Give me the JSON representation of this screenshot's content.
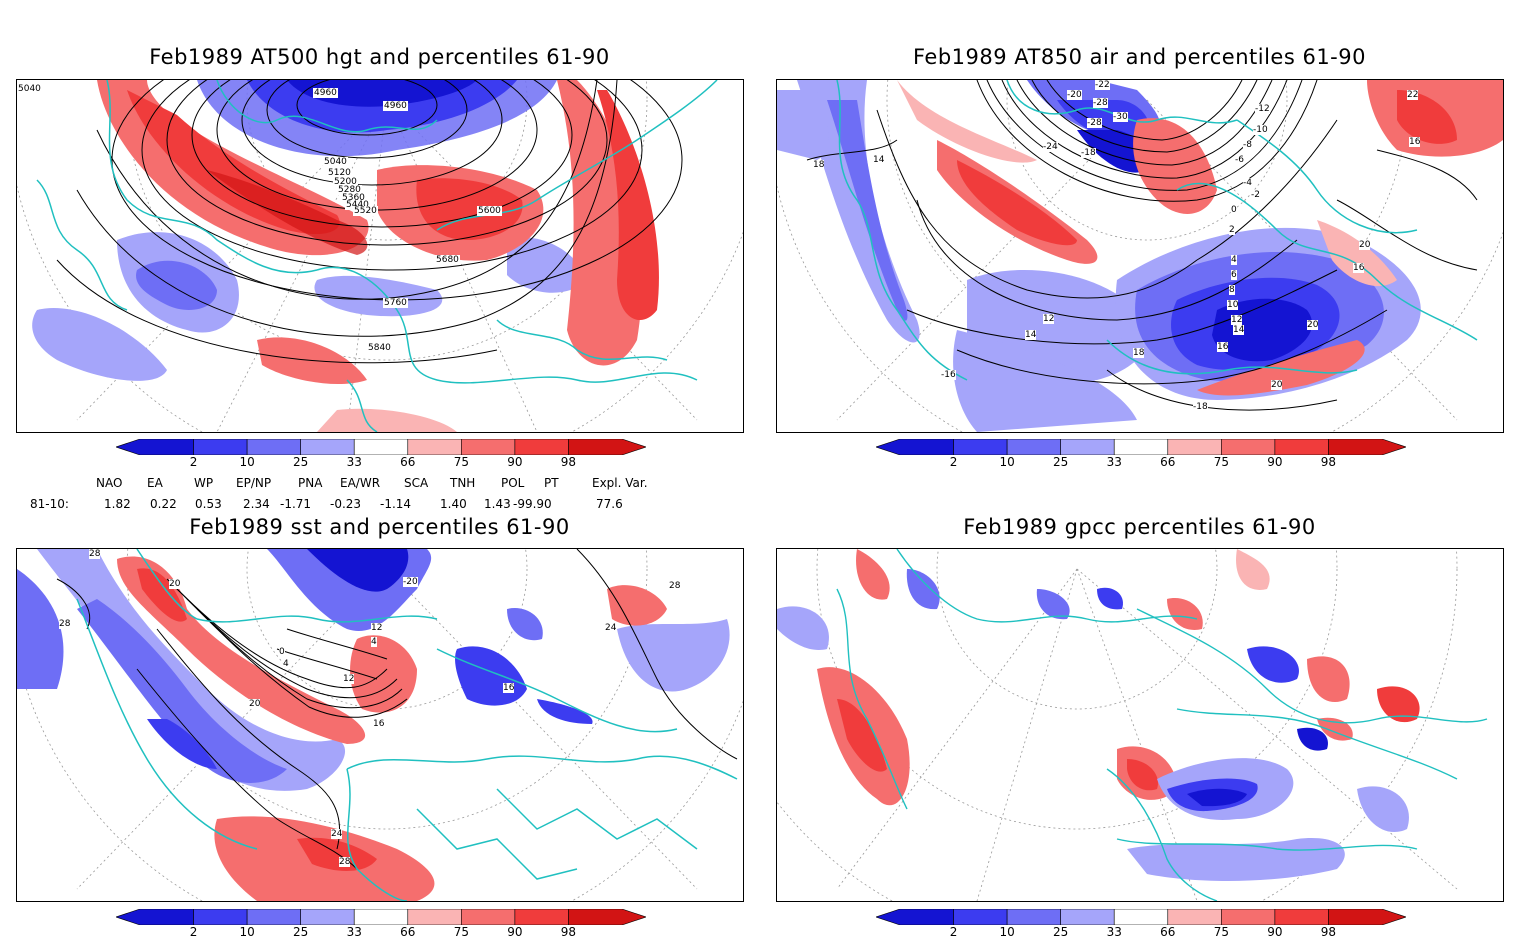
{
  "panels": [
    {
      "id": "tl",
      "title": "Feb1989 AT500 hgt and percentiles 61-90"
    },
    {
      "id": "tr",
      "title": "Feb1989 AT850 air and percentiles 61-90"
    },
    {
      "id": "bl",
      "title": "Feb1989 sst and percentiles 61-90"
    },
    {
      "id": "br",
      "title": "Feb1989 gpcc percentiles 61-90"
    }
  ],
  "colorbar": {
    "labels": [
      "2",
      "10",
      "25",
      "33",
      "66",
      "75",
      "90",
      "98"
    ],
    "colors": [
      "#1414d2",
      "#3c3cf0",
      "#6e6ef5",
      "#a5a5fa",
      "#ffffff",
      "#fab4b4",
      "#f56e6e",
      "#f03c3c",
      "#d21414"
    ]
  },
  "indices": {
    "headers": [
      "NAO",
      "EA",
      "WP",
      "EP/NP",
      "PNA",
      "EA/WR",
      "SCA",
      "TNH",
      "POL",
      "PT",
      "Expl. Var."
    ],
    "row_label": "81-10:",
    "values": [
      "1.82",
      "0.22",
      "0.53",
      "2.34",
      "-1.71",
      "-0.23",
      "-1.14",
      "1.40",
      "1.43",
      "-99.90",
      "77.6"
    ]
  },
  "contour_labels": {
    "tl": [
      "4960",
      "4960",
      "5040",
      "5120",
      "5200",
      "5280",
      "5360",
      "5440",
      "5520",
      "5600",
      "5680",
      "5760",
      "5840",
      "5040"
    ],
    "tr": [
      "-22",
      "-20",
      "-28",
      "-28",
      "-30",
      "-24",
      "-18",
      "-12",
      "-10",
      "-8",
      "-6",
      "-4",
      "-2",
      "0",
      "2",
      "4",
      "6",
      "8",
      "10",
      "12",
      "14",
      "16",
      "18",
      "16",
      "20",
      "20",
      "22",
      "20",
      "-18",
      "16",
      "14",
      "14",
      "12",
      "-16",
      "18"
    ],
    "bl": [
      "28",
      "20",
      "28",
      "-20",
      "12",
      "4",
      "0",
      "4",
      "12",
      "16",
      "20",
      "24",
      "28",
      "16",
      "24",
      "28"
    ]
  }
}
